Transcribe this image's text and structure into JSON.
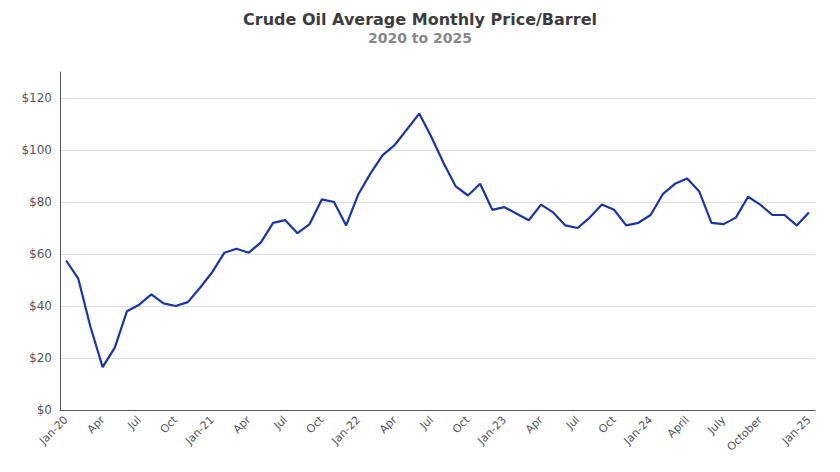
{
  "chart_data": {
    "type": "line",
    "title": "Crude Oil Average Monthly Price/Barrel",
    "subtitle": "2020 to 2025",
    "categories": [
      "Jan-20",
      null,
      null,
      "Apr",
      null,
      null,
      "Jul",
      null,
      null,
      "Oct",
      null,
      null,
      "Jan-21",
      null,
      null,
      "Apr",
      null,
      null,
      "Jul",
      null,
      null,
      "Oct",
      null,
      null,
      "Jan-22",
      null,
      null,
      "Apr",
      null,
      null,
      "Jul",
      null,
      null,
      "Oct",
      null,
      null,
      "Jan-23",
      null,
      null,
      "Apr",
      null,
      null,
      "Jul",
      null,
      null,
      "Oct",
      null,
      null,
      "Jan-24",
      null,
      null,
      "April",
      null,
      null,
      "July",
      null,
      null,
      "October",
      null,
      null,
      null,
      "Jan-25"
    ],
    "values": [
      57.5,
      50.5,
      32.0,
      16.5,
      24.0,
      38.0,
      40.5,
      44.5,
      41.0,
      40.0,
      41.5,
      47.0,
      53.0,
      60.5,
      62.0,
      60.5,
      64.5,
      72.0,
      73.0,
      68.0,
      71.5,
      81.0,
      80.0,
      71.0,
      83.0,
      91.0,
      98.0,
      102.0,
      108.0,
      114.0,
      105.0,
      95.0,
      86.0,
      82.5,
      87.0,
      77.0,
      78.0,
      75.5,
      73.0,
      79.0,
      76.0,
      71.0,
      70.0,
      74.0,
      79.0,
      77.0,
      71.0,
      72.0,
      75.0,
      83.0,
      87.0,
      89.0,
      84.0,
      72.0,
      71.5,
      74.0,
      82.0,
      79.0,
      75.0,
      75.0,
      71.0,
      76.0
    ],
    "color": "#1a35a8",
    "ylim": [
      0,
      130
    ],
    "yticks": [
      {
        "value": 0,
        "label": "$0"
      },
      {
        "value": 20,
        "label": "$20"
      },
      {
        "value": 40,
        "label": "$40"
      },
      {
        "value": 60,
        "label": "$60"
      },
      {
        "value": 80,
        "label": "$80"
      },
      {
        "value": 100,
        "label": "$100"
      },
      {
        "value": 120,
        "label": "$120"
      }
    ],
    "grid": true
  }
}
